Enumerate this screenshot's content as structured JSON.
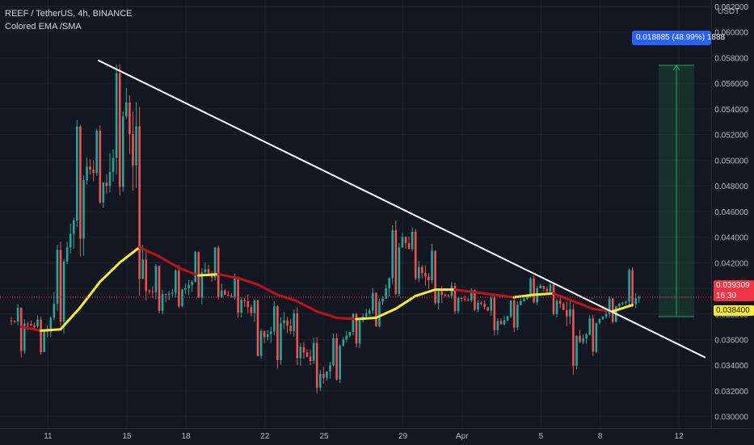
{
  "legend": {
    "symbol_line": "REEF / TetherUS, 4h, BINANCE",
    "indicator_line": "Colored EMA /SMA"
  },
  "axis": {
    "unit": "USDT",
    "price_label": "0.039309",
    "countdown_label": "16:30",
    "ma_label": "0.038400",
    "measure_label": "0.018885 (48.99%) 1888"
  },
  "colors": {
    "background": "#131722",
    "up": "#26a69a",
    "down": "#ef5350",
    "ma_up": "#ffeb3b",
    "ma_down": "#c2101a",
    "trendline": "#ffffff",
    "measure": "#2962ff",
    "price_tag": "#f23645"
  },
  "chart_data": {
    "type": "candlestick",
    "interval": "4h",
    "x_ticks": [
      "11",
      "15",
      "18",
      "22",
      "25",
      "29",
      "Apr",
      "5",
      "8",
      "12"
    ],
    "y_ticks": [
      0.03,
      0.032,
      0.034,
      0.036,
      0.038,
      0.04,
      0.042,
      0.044,
      0.046,
      0.048,
      0.05,
      0.052,
      0.054,
      0.056,
      0.058,
      0.06,
      0.062
    ],
    "ylim": [
      0.0291,
      0.0625
    ],
    "days": [
      {
        "day": "10",
        "open": 0.0375,
        "high": 0.0392,
        "low": 0.0344,
        "close": 0.0372
      },
      {
        "day": "11",
        "open": 0.0372,
        "high": 0.0381,
        "low": 0.0345,
        "close": 0.0366
      },
      {
        "day": "12",
        "open": 0.0366,
        "high": 0.0442,
        "low": 0.0362,
        "close": 0.0432
      },
      {
        "day": "13",
        "open": 0.0432,
        "high": 0.0545,
        "low": 0.042,
        "close": 0.0495
      },
      {
        "day": "14",
        "open": 0.0495,
        "high": 0.0535,
        "low": 0.0455,
        "close": 0.048
      },
      {
        "day": "15",
        "open": 0.048,
        "high": 0.0587,
        "low": 0.046,
        "close": 0.0545
      },
      {
        "day": "16",
        "open": 0.0545,
        "high": 0.0552,
        "low": 0.0382,
        "close": 0.0398
      },
      {
        "day": "17",
        "open": 0.0398,
        "high": 0.0425,
        "low": 0.0375,
        "close": 0.0395
      },
      {
        "day": "18",
        "open": 0.0395,
        "high": 0.042,
        "low": 0.038,
        "close": 0.04
      },
      {
        "day": "19",
        "open": 0.04,
        "high": 0.0436,
        "low": 0.0385,
        "close": 0.0415
      },
      {
        "day": "20",
        "open": 0.0415,
        "high": 0.044,
        "low": 0.0385,
        "close": 0.0395
      },
      {
        "day": "21",
        "open": 0.0395,
        "high": 0.0415,
        "low": 0.0375,
        "close": 0.039
      },
      {
        "day": "22",
        "open": 0.039,
        "high": 0.04,
        "low": 0.0338,
        "close": 0.0362
      },
      {
        "day": "23",
        "open": 0.0362,
        "high": 0.0395,
        "low": 0.0335,
        "close": 0.0375
      },
      {
        "day": "24",
        "open": 0.0375,
        "high": 0.0388,
        "low": 0.0338,
        "close": 0.035
      },
      {
        "day": "25",
        "open": 0.035,
        "high": 0.0365,
        "low": 0.0315,
        "close": 0.033
      },
      {
        "day": "26",
        "open": 0.033,
        "high": 0.0368,
        "low": 0.0322,
        "close": 0.036
      },
      {
        "day": "27",
        "open": 0.036,
        "high": 0.0385,
        "low": 0.0352,
        "close": 0.0378
      },
      {
        "day": "28",
        "open": 0.0378,
        "high": 0.0402,
        "low": 0.0365,
        "close": 0.0392
      },
      {
        "day": "29",
        "open": 0.0392,
        "high": 0.0456,
        "low": 0.0385,
        "close": 0.044
      },
      {
        "day": "30",
        "open": 0.044,
        "high": 0.0452,
        "low": 0.04,
        "close": 0.0412
      },
      {
        "day": "31",
        "open": 0.0412,
        "high": 0.0438,
        "low": 0.038,
        "close": 0.0395
      },
      {
        "day": "Apr",
        "open": 0.0395,
        "high": 0.0406,
        "low": 0.0378,
        "close": 0.0392
      },
      {
        "day": "2",
        "open": 0.0392,
        "high": 0.0402,
        "low": 0.038,
        "close": 0.0388
      },
      {
        "day": "3",
        "open": 0.0388,
        "high": 0.0398,
        "low": 0.0362,
        "close": 0.0372
      },
      {
        "day": "4",
        "open": 0.0372,
        "high": 0.0395,
        "low": 0.0365,
        "close": 0.039
      },
      {
        "day": "5",
        "open": 0.039,
        "high": 0.0412,
        "low": 0.0385,
        "close": 0.0402
      },
      {
        "day": "6",
        "open": 0.0402,
        "high": 0.0408,
        "low": 0.0375,
        "close": 0.0388
      },
      {
        "day": "7",
        "open": 0.0388,
        "high": 0.0393,
        "low": 0.033,
        "close": 0.0358
      },
      {
        "day": "8",
        "open": 0.0358,
        "high": 0.0382,
        "low": 0.0345,
        "close": 0.0376
      },
      {
        "day": "9",
        "open": 0.0376,
        "high": 0.0396,
        "low": 0.037,
        "close": 0.0388
      },
      {
        "day": "10",
        "open": 0.0388,
        "high": 0.042,
        "low": 0.0382,
        "close": 0.0393
      }
    ],
    "moving_average": {
      "name": "Colored EMA /SMA",
      "values": [
        0.037,
        0.0367,
        0.0368,
        0.0385,
        0.0405,
        0.042,
        0.0432,
        0.0425,
        0.0416,
        0.041,
        0.0411,
        0.0408,
        0.0403,
        0.0395,
        0.039,
        0.0382,
        0.0377,
        0.0376,
        0.0377,
        0.0384,
        0.0394,
        0.0399,
        0.0399,
        0.0397,
        0.0395,
        0.0393,
        0.0395,
        0.0396,
        0.039,
        0.0384,
        0.0382,
        0.0387
      ]
    },
    "trendline": {
      "from": {
        "day": "14",
        "price": 0.0578
      },
      "to": {
        "day": "12",
        "price": 0.0346
      }
    },
    "current_price": 0.039309,
    "measure": {
      "from": 0.0378,
      "to": 0.0574,
      "label": "0.018885 (48.99%) 1888"
    }
  }
}
